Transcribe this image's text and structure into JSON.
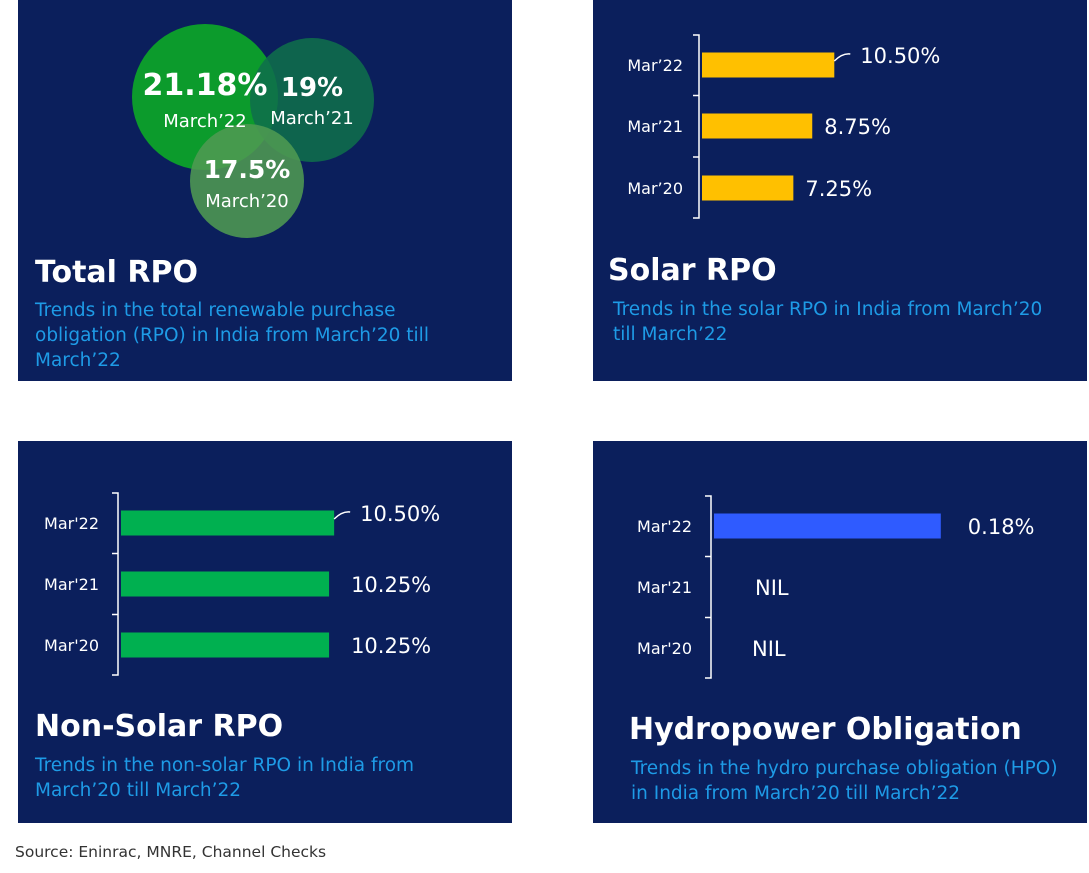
{
  "source": "Source: Eninrac,  MNRE, Channel Checks",
  "panels": {
    "total": {
      "title": "Total RPO",
      "description": "Trends in the total renewable purchase obligation (RPO) in India from March’20 till March’22"
    },
    "solar": {
      "title": "Solar RPO",
      "description": "Trends in the solar RPO in India from March’20 till March’22"
    },
    "nonsolar": {
      "title": "Non-Solar RPO",
      "description": "Trends in the non-solar RPO in India from March’20 till March’22"
    },
    "hydro": {
      "title": "Hydropower Obligation",
      "description": "Trends in the hydro purchase obligation (HPO) in India from March’20 till March’22"
    }
  },
  "colors": {
    "panel_bg": "#0b1f5c",
    "description": "#1e9be6",
    "solar_bar": "#ffc000",
    "nonsolar_bar": "#00b050",
    "hydro_bar": "#2f5bff"
  },
  "chart_data": [
    {
      "type": "bubble",
      "title": "Total RPO",
      "categories": [
        "March’22",
        "March’21",
        "March’20"
      ],
      "values": [
        21.18,
        19,
        17.5
      ],
      "labels": [
        "21.18%",
        "19%",
        "17.5%"
      ],
      "colors": [
        "#0c9b2c",
        "#0f6e4b",
        "#4f9a52"
      ]
    },
    {
      "type": "bar",
      "orientation": "horizontal",
      "title": "Solar RPO",
      "categories": [
        "Mar’22",
        "Mar’21",
        "Mar’20"
      ],
      "values": [
        10.5,
        8.75,
        7.25
      ],
      "labels": [
        "10.50%",
        "8.75%",
        "7.25%"
      ],
      "color": "#ffc000"
    },
    {
      "type": "bar",
      "orientation": "horizontal",
      "title": "Non-Solar RPO",
      "categories": [
        "Mar'22",
        "Mar'21",
        "Mar'20"
      ],
      "values": [
        10.5,
        10.25,
        10.25
      ],
      "labels": [
        "10.50%",
        "10.25%",
        "10.25%"
      ],
      "color": "#00b050"
    },
    {
      "type": "bar",
      "orientation": "horizontal",
      "title": "Hydropower Obligation",
      "categories": [
        "Mar'22",
        "Mar'21",
        "Mar'20"
      ],
      "values": [
        0.18,
        null,
        null
      ],
      "labels": [
        "0.18%",
        "NIL",
        "NIL"
      ],
      "color": "#2f5bff"
    }
  ]
}
